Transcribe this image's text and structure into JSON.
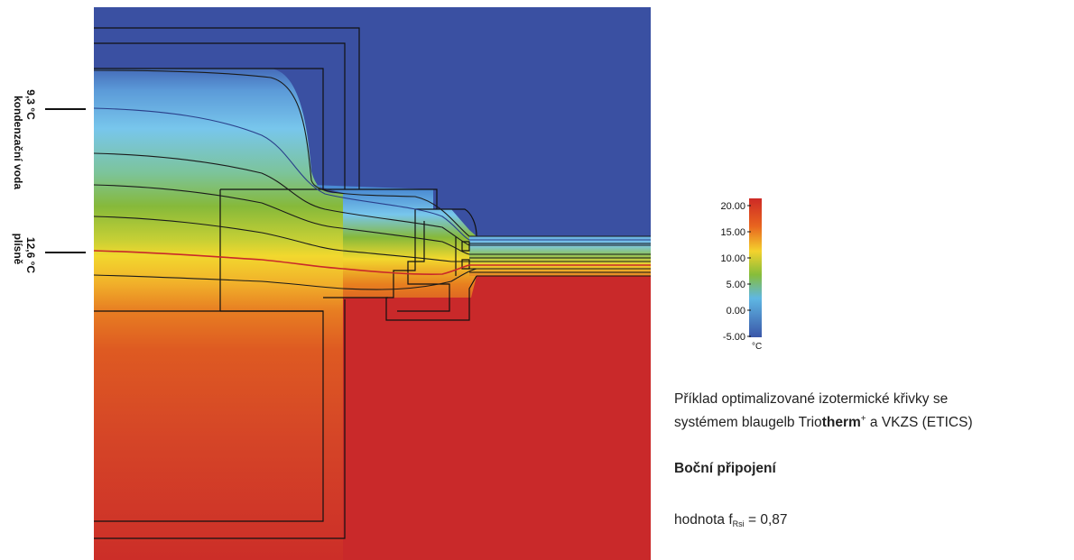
{
  "annotations": {
    "upper": {
      "value": "9,3 °C",
      "text": "kondenzační voda"
    },
    "lower": {
      "value": "12,6 °C",
      "text": "plísně"
    }
  },
  "scale": {
    "ticks": [
      "20.00",
      "15.00",
      "10.00",
      "5.00",
      "0.00",
      "-5.00"
    ],
    "unit": "°C",
    "colors": [
      "#cd2a26",
      "#e8641f",
      "#f4d22d",
      "#86bd3a",
      "#5fb7e3",
      "#3a56a8"
    ]
  },
  "colors": {
    "cold": "#3a50a2",
    "warm": "#c9292a",
    "isotherm_critical": "#c9292a",
    "isotherm": "#1a1a1a"
  },
  "caption": {
    "line1": "Příklad optimalizované izotermické křivky se",
    "line2_prefix": "systémem blaugelb Trio",
    "line2_bold": "therm",
    "line2_plus": "+",
    "line2_suffix": " a VKZS (ETICS)"
  },
  "heading": "Boční připojení",
  "fvalue": {
    "label": "hodnota f",
    "subscript": "Rsi",
    "value": " = 0,87"
  }
}
